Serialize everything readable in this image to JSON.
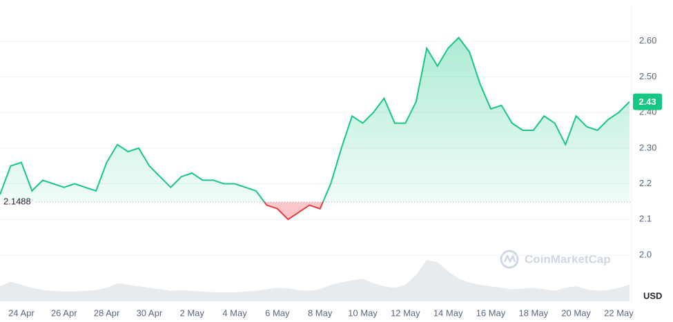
{
  "chart_data": {
    "type": "line",
    "categories": [
      null,
      null,
      "24 Apr",
      null,
      null,
      null,
      "26 Apr",
      null,
      null,
      null,
      "28 Apr",
      null,
      null,
      null,
      "30 Apr",
      null,
      null,
      null,
      "2 May",
      null,
      null,
      null,
      "4 May",
      null,
      null,
      null,
      "6 May",
      null,
      null,
      null,
      "8 May",
      null,
      null,
      null,
      "10 May",
      null,
      null,
      null,
      "12 May",
      null,
      null,
      null,
      "14 May",
      null,
      null,
      null,
      "16 May",
      null,
      null,
      null,
      "18 May",
      null,
      null,
      null,
      "20 May",
      null,
      null,
      null,
      "22 May",
      null
    ],
    "series": [
      {
        "color": "#16c784",
        "below_color": "#ea3943",
        "values": [
          2.17,
          2.25,
          2.26,
          2.18,
          2.21,
          2.2,
          2.19,
          2.2,
          2.19,
          2.18,
          2.26,
          2.31,
          2.29,
          2.3,
          2.25,
          2.22,
          2.19,
          2.22,
          2.23,
          2.21,
          2.21,
          2.2,
          2.2,
          2.19,
          2.18,
          2.14,
          2.13,
          2.1,
          2.12,
          2.14,
          2.13,
          2.2,
          2.3,
          2.39,
          2.37,
          2.4,
          2.44,
          2.37,
          2.37,
          2.43,
          2.58,
          2.53,
          2.58,
          2.61,
          2.57,
          2.48,
          2.41,
          2.42,
          2.37,
          2.35,
          2.35,
          2.39,
          2.37,
          2.31,
          2.39,
          2.36,
          2.35,
          2.38,
          2.4,
          2.43
        ]
      }
    ],
    "volume": {
      "color": "#d9dde3",
      "values": [
        20,
        26,
        22,
        18,
        15,
        14,
        13,
        13,
        14,
        15,
        18,
        24,
        22,
        20,
        18,
        16,
        14,
        15,
        14,
        13,
        12,
        12,
        12,
        13,
        14,
        16,
        18,
        17,
        15,
        14,
        16,
        22,
        25,
        28,
        30,
        24,
        20,
        18,
        22,
        35,
        55,
        52,
        40,
        30,
        25,
        22,
        20,
        18,
        16,
        17,
        18,
        16,
        14,
        18,
        20,
        16,
        14,
        15,
        18,
        22
      ]
    },
    "baseline": {
      "value": 2.1488,
      "label": "2.1488"
    },
    "current_price": {
      "value": 2.43,
      "label": "2.43"
    },
    "ylim": [
      1.88,
      2.7
    ],
    "yticks": [
      {
        "value": 2,
        "label": "2.0"
      },
      2.1,
      2.2,
      {
        "value": 2.3,
        "label": "2.30"
      },
      {
        "value": 2.4,
        "label": "2.40"
      },
      {
        "value": 2.5,
        "label": "2.50"
      },
      {
        "value": 2.6,
        "label": "2.60"
      }
    ],
    "y_unit": "USD",
    "watermark": "CoinMarketCap",
    "grid": true
  }
}
